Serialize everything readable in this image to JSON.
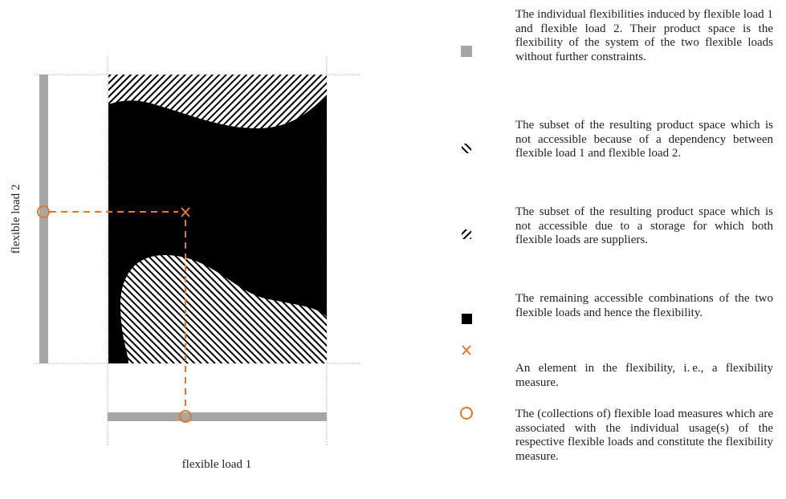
{
  "figure": {
    "x_label": "flexible load 1",
    "y_label": "flexible load 2"
  },
  "legend": [
    {
      "text": "The individual flexibilities induced by flexible load 1 and flexible load 2. Their product space is the flexibility of the system of the two flexible loads without further constraints."
    },
    {
      "text": "The subset of the resulting product space which is not accessible because of a dependency between flexible load 1 and flexible load 2."
    },
    {
      "text": "The subset of the resulting product space which is not accessible due to a storage for which both flexible loads are suppliers."
    },
    {
      "text": "The remaining accessible combina­tions of the two flexible loads and hence the flexibility."
    },
    {
      "text": "An element in the flexibility, i. e., a flexibility measure."
    },
    {
      "text": "The (collections of) flexible load measures which are associated with the individual usage(s) of the respective flexible loads and constitute the flexibility measure."
    }
  ]
}
